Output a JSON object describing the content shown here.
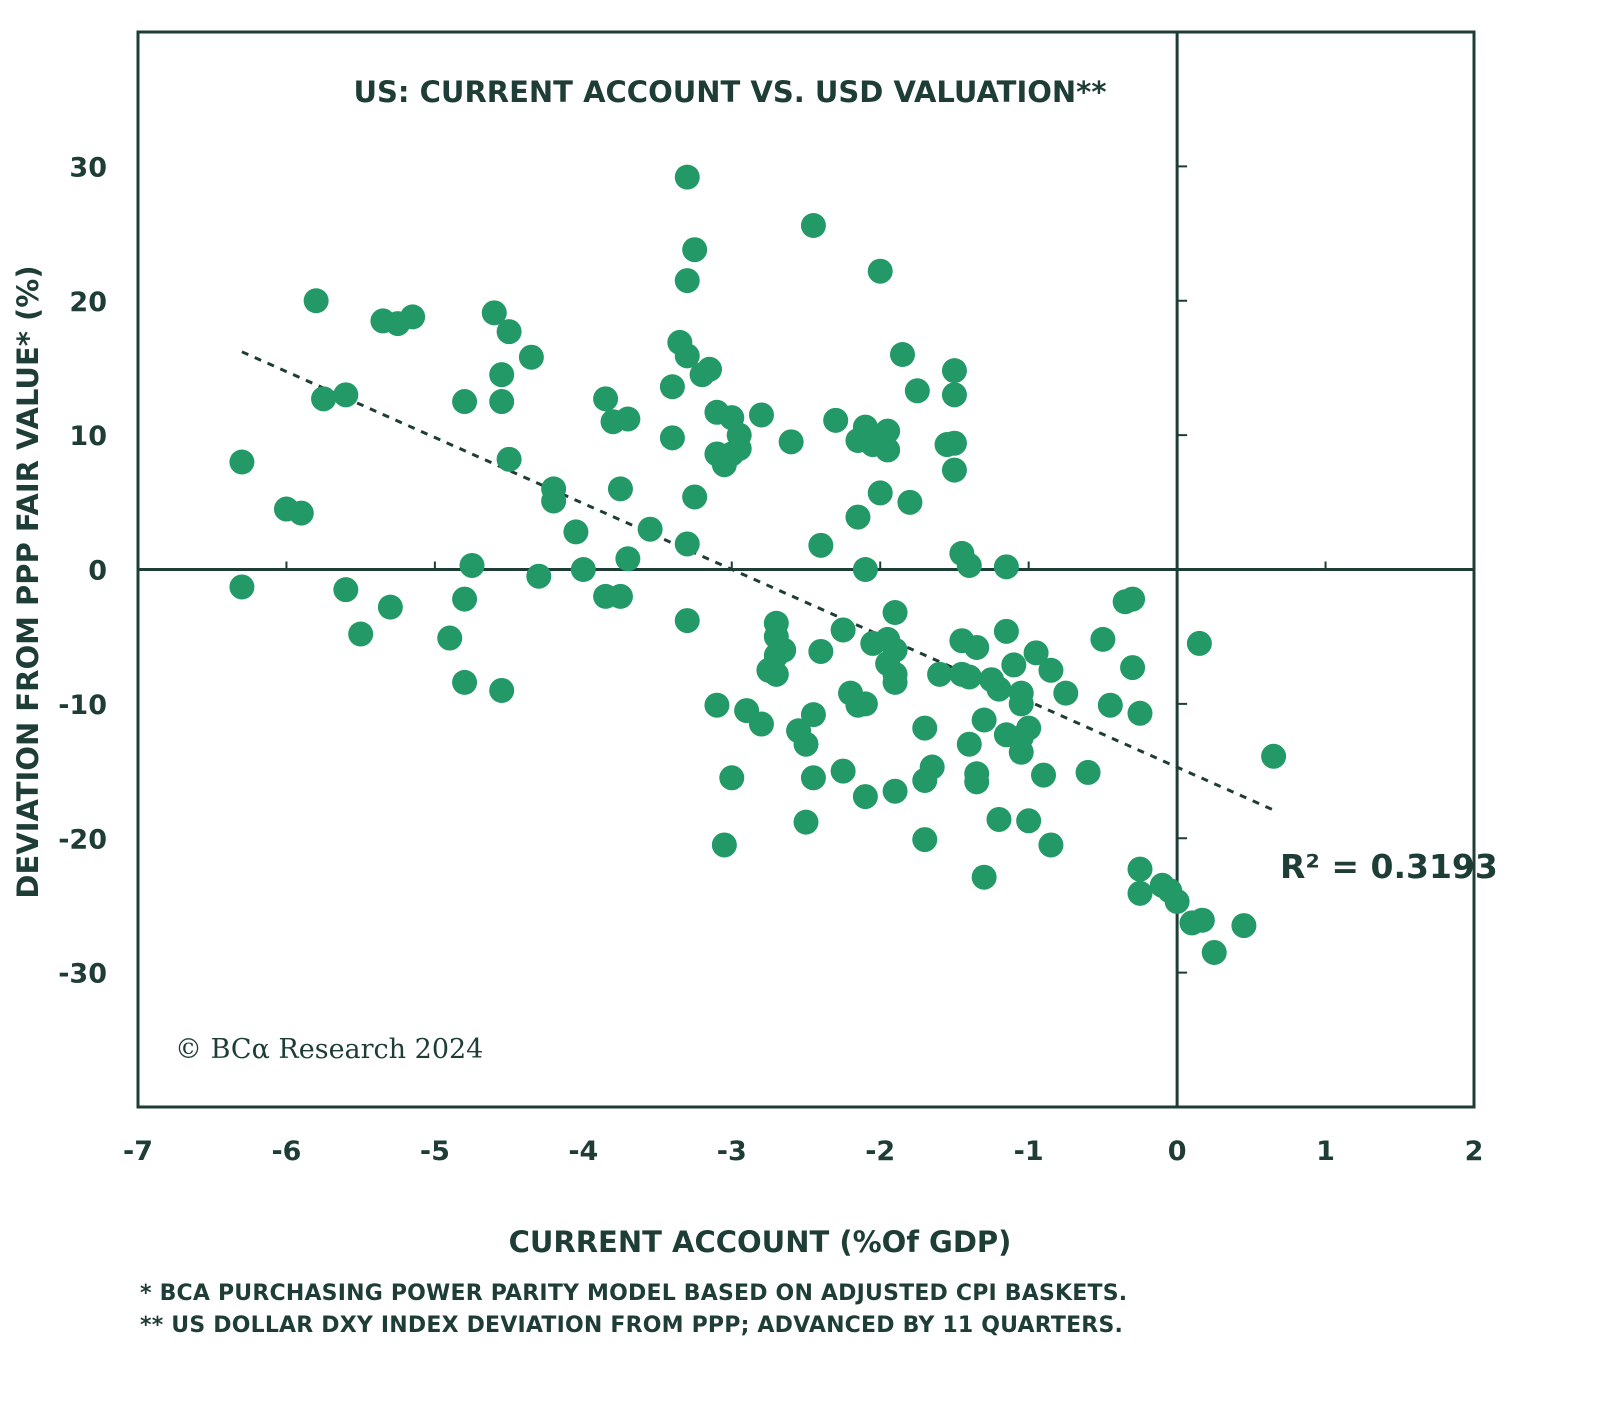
{
  "chart_data": {
    "type": "scatter",
    "title": "US: CURRENT ACCOUNT VS. USD VALUATION**",
    "xlabel": "CURRENT ACCOUNT (%Of GDP)",
    "ylabel": "DEVIATION FROM PPP FAIR VALUE* (%)",
    "xlim": [
      -7,
      2
    ],
    "ylim": [
      -40,
      40
    ],
    "x_ticks": [
      -7,
      -6,
      -5,
      -4,
      -3,
      -2,
      -1,
      0,
      1,
      2
    ],
    "y_ticks": [
      30,
      20,
      10,
      0,
      -10,
      -20,
      -30
    ],
    "grid": false,
    "r_squared_label": "R² = 0.3193",
    "trendline": {
      "x": [
        -6.3,
        0.67
      ],
      "y": [
        16.2,
        -18.0
      ]
    },
    "copyright": "© BCα Research 2024",
    "colors": {
      "points": "#229966",
      "axis": "#1e3d36",
      "trendline": "#1e3d36"
    },
    "points": [
      [
        -6.3,
        8
      ],
      [
        -6.3,
        -1.3
      ],
      [
        -6.0,
        4.5
      ],
      [
        -5.9,
        4.2
      ],
      [
        -5.8,
        20
      ],
      [
        -5.75,
        12.7
      ],
      [
        -5.6,
        13
      ],
      [
        -5.6,
        -1.5
      ],
      [
        -5.5,
        -4.8
      ],
      [
        -5.35,
        18.5
      ],
      [
        -5.3,
        -2.8
      ],
      [
        -5.25,
        18.3
      ],
      [
        -5.15,
        18.8
      ],
      [
        -4.9,
        -5.1
      ],
      [
        -4.8,
        12.5
      ],
      [
        -4.8,
        -2.2
      ],
      [
        -4.8,
        -8.4
      ],
      [
        -4.75,
        0.3
      ],
      [
        -4.6,
        19.1
      ],
      [
        -4.55,
        14.5
      ],
      [
        -4.55,
        12.5
      ],
      [
        -4.55,
        -9
      ],
      [
        -4.5,
        17.7
      ],
      [
        -4.5,
        8.2
      ],
      [
        -4.35,
        15.8
      ],
      [
        -4.3,
        -0.5
      ],
      [
        -4.2,
        6
      ],
      [
        -4.2,
        5.1
      ],
      [
        -4.05,
        2.8
      ],
      [
        -4.0,
        0
      ],
      [
        -3.85,
        12.7
      ],
      [
        -3.85,
        -2
      ],
      [
        -3.8,
        11
      ],
      [
        -3.75,
        6
      ],
      [
        -3.75,
        -2
      ],
      [
        -3.7,
        0.8
      ],
      [
        -3.7,
        11.2
      ],
      [
        -3.55,
        3
      ],
      [
        -3.4,
        13.6
      ],
      [
        -3.4,
        9.8
      ],
      [
        -3.35,
        16.9
      ],
      [
        -3.3,
        29.2
      ],
      [
        -3.3,
        21.5
      ],
      [
        -3.3,
        15.9
      ],
      [
        -3.3,
        1.9
      ],
      [
        -3.3,
        -3.8
      ],
      [
        -3.25,
        23.8
      ],
      [
        -3.25,
        5.4
      ],
      [
        -3.2,
        14.5
      ],
      [
        -3.15,
        14.9
      ],
      [
        -3.1,
        11.7
      ],
      [
        -3.1,
        8.6
      ],
      [
        -3.1,
        -10.1
      ],
      [
        -3.05,
        7.8
      ],
      [
        -3.05,
        -20.5
      ],
      [
        -3.0,
        11.3
      ],
      [
        -3.0,
        8.6
      ],
      [
        -3.0,
        -15.5
      ],
      [
        -2.95,
        10
      ],
      [
        -2.95,
        9
      ],
      [
        -2.9,
        -10.5
      ],
      [
        -2.8,
        11.5
      ],
      [
        -2.8,
        -11.5
      ],
      [
        -2.75,
        -7.5
      ],
      [
        -2.7,
        -4
      ],
      [
        -2.7,
        -5
      ],
      [
        -2.7,
        -6.4
      ],
      [
        -2.7,
        -7.8
      ],
      [
        -2.65,
        -6
      ],
      [
        -2.6,
        9.5
      ],
      [
        -2.55,
        -12
      ],
      [
        -2.5,
        -13
      ],
      [
        -2.5,
        -18.8
      ],
      [
        -2.45,
        25.6
      ],
      [
        -2.45,
        -10.8
      ],
      [
        -2.45,
        -15.5
      ],
      [
        -2.4,
        1.8
      ],
      [
        -2.4,
        -6.1
      ],
      [
        -2.3,
        11.1
      ],
      [
        -2.25,
        -4.5
      ],
      [
        -2.25,
        -15
      ],
      [
        -2.2,
        -9.2
      ],
      [
        -2.15,
        3.9
      ],
      [
        -2.15,
        9.6
      ],
      [
        -2.15,
        -10.1
      ],
      [
        -2.1,
        10.6
      ],
      [
        -2.1,
        0
      ],
      [
        -2.1,
        -10
      ],
      [
        -2.1,
        -16.9
      ],
      [
        -2.05,
        9.3
      ],
      [
        -2.05,
        -5.5
      ],
      [
        -2.0,
        5.7
      ],
      [
        -2.0,
        22.2
      ],
      [
        -1.95,
        8.9
      ],
      [
        -1.95,
        10.3
      ],
      [
        -1.95,
        -5.2
      ],
      [
        -1.95,
        -7
      ],
      [
        -1.9,
        -3.2
      ],
      [
        -1.9,
        -6
      ],
      [
        -1.9,
        -7.8
      ],
      [
        -1.9,
        -8.4
      ],
      [
        -1.9,
        -16.5
      ],
      [
        -1.85,
        16
      ],
      [
        -1.8,
        5
      ],
      [
        -1.75,
        13.3
      ],
      [
        -1.7,
        -11.8
      ],
      [
        -1.7,
        -15.7
      ],
      [
        -1.7,
        -20.1
      ],
      [
        -1.65,
        -14.7
      ],
      [
        -1.6,
        -7.8
      ],
      [
        -1.55,
        9.3
      ],
      [
        -1.5,
        14.8
      ],
      [
        -1.5,
        13
      ],
      [
        -1.5,
        9.4
      ],
      [
        -1.5,
        7.4
      ],
      [
        -1.45,
        1.2
      ],
      [
        -1.45,
        -5.3
      ],
      [
        -1.45,
        -7.8
      ],
      [
        -1.4,
        0.3
      ],
      [
        -1.4,
        -8
      ],
      [
        -1.4,
        -13
      ],
      [
        -1.35,
        -15.2
      ],
      [
        -1.35,
        -5.8
      ],
      [
        -1.35,
        -15.8
      ],
      [
        -1.3,
        -11.2
      ],
      [
        -1.3,
        -22.9
      ],
      [
        -1.25,
        -8.2
      ],
      [
        -1.2,
        -18.6
      ],
      [
        -1.2,
        -8.9
      ],
      [
        -1.15,
        0.2
      ],
      [
        -1.15,
        -4.6
      ],
      [
        -1.15,
        -12.3
      ],
      [
        -1.1,
        -7.1
      ],
      [
        -1.05,
        -13.6
      ],
      [
        -1.05,
        -12.5
      ],
      [
        -1.05,
        -9.2
      ],
      [
        -1.05,
        -10
      ],
      [
        -1.0,
        -11.8
      ],
      [
        -1.0,
        -18.7
      ],
      [
        -0.95,
        -6.2
      ],
      [
        -0.9,
        -15.3
      ],
      [
        -0.85,
        -7.5
      ],
      [
        -0.85,
        -20.5
      ],
      [
        -0.75,
        -9.2
      ],
      [
        -0.6,
        -15.1
      ],
      [
        -0.5,
        -5.2
      ],
      [
        -0.45,
        -10.1
      ],
      [
        -0.3,
        -2.2
      ],
      [
        -0.25,
        -24.1
      ],
      [
        -0.1,
        -23.5
      ],
      [
        0.0,
        -24.7
      ],
      [
        -0.35,
        -2.4
      ],
      [
        -0.3,
        -7.3
      ],
      [
        -0.25,
        -10.7
      ],
      [
        -0.25,
        -22.3
      ],
      [
        -0.05,
        -23.9
      ],
      [
        0.1,
        -26.3
      ],
      [
        0.15,
        -5.5
      ],
      [
        0.17,
        -26.1
      ],
      [
        0.25,
        -28.5
      ],
      [
        0.45,
        -26.5
      ],
      [
        0.65,
        -13.9
      ]
    ]
  },
  "footnotes": {
    "line1": "*   BCA PURCHASING POWER PARITY MODEL BASED ON ADJUSTED CPI BASKETS.",
    "line2": "** US DOLLAR DXY INDEX DEVIATION FROM PPP; ADVANCED BY 11 QUARTERS."
  }
}
